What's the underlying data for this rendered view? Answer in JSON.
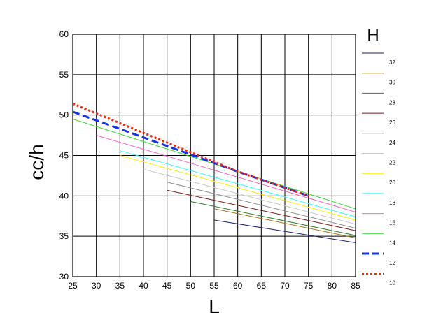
{
  "chart_data": {
    "type": "line",
    "title": "",
    "xlabel": "L",
    "ylabel": "cc/h",
    "xlim": [
      25,
      85
    ],
    "ylim": [
      30,
      60
    ],
    "grid": true,
    "x_ticks": [
      "25",
      "30",
      "35",
      "40",
      "45",
      "50",
      "55",
      "60",
      "65",
      "70",
      "75",
      "80",
      "85"
    ],
    "y_ticks": [
      "60",
      "55",
      "50",
      "45",
      "40",
      "35",
      "30"
    ],
    "legend_title": "H",
    "legend_position": "right",
    "series": [
      {
        "name": "32",
        "color": "#1f1f7a",
        "dash": "solid",
        "points": [
          [
            55,
            37.0
          ],
          [
            85,
            34.2
          ]
        ]
      },
      {
        "name": "30",
        "color": "#a07818",
        "dash": "solid",
        "points": [
          [
            55,
            38.4
          ],
          [
            85,
            34.8
          ]
        ]
      },
      {
        "name": "28",
        "color": "#2e7d32",
        "dash": "solid",
        "points": [
          [
            50,
            39.3
          ],
          [
            85,
            35.1
          ]
        ]
      },
      {
        "name": "26",
        "color": "#7b1a1a",
        "dash": "solid",
        "points": [
          [
            45,
            40.7
          ],
          [
            85,
            35.7
          ]
        ]
      },
      {
        "name": "24",
        "color": "#909090",
        "dash": "solid",
        "points": [
          [
            45,
            41.7
          ],
          [
            85,
            36.0
          ]
        ]
      },
      {
        "name": "22",
        "color": "#c8c8c8",
        "dash": "solid",
        "points": [
          [
            40,
            43.3
          ],
          [
            85,
            36.5
          ]
        ]
      },
      {
        "name": "20",
        "color": "#ffee00",
        "dash": "solid",
        "points": [
          [
            35,
            45.0
          ],
          [
            85,
            37.0
          ]
        ]
      },
      {
        "name": "18",
        "color": "#33ffff",
        "dash": "solid",
        "points": [
          [
            35,
            45.6
          ],
          [
            85,
            37.4
          ]
        ]
      },
      {
        "name": "16",
        "color": "#ff66cc",
        "dash": "solid",
        "points": [
          [
            30,
            47.5
          ],
          [
            85,
            38.0
          ]
        ]
      },
      {
        "name": "14",
        "color": "#33dd33",
        "dash": "solid",
        "points": [
          [
            25,
            49.5
          ],
          [
            85,
            38.4
          ]
        ]
      },
      {
        "name": "12",
        "color": "#1133ee",
        "dash": "dashed",
        "points": [
          [
            25,
            50.4
          ],
          [
            60,
            43.0
          ],
          [
            75,
            40.0
          ]
        ]
      },
      {
        "name": "10",
        "color": "#ff2200",
        "dash": "dotted",
        "points": [
          [
            25,
            51.4
          ],
          [
            50,
            45.4
          ],
          [
            60,
            43.0
          ],
          [
            75,
            40.0
          ]
        ]
      }
    ]
  }
}
